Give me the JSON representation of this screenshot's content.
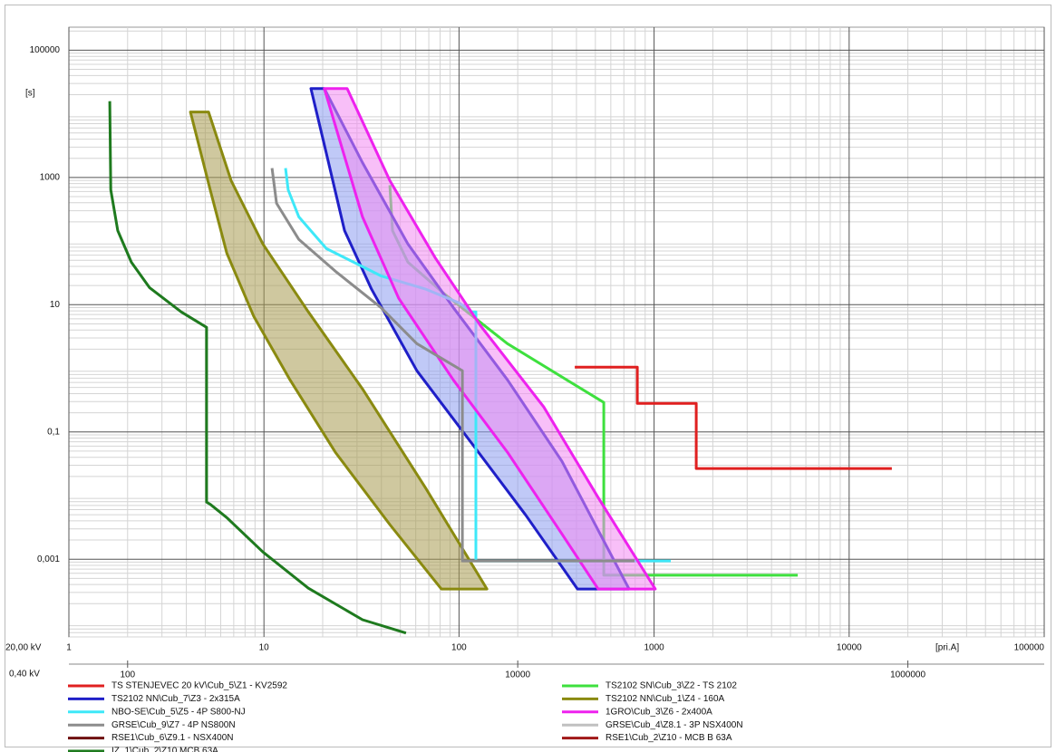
{
  "chart_data": {
    "type": "line",
    "x_label": "[pri.A]",
    "y_unit": "[s]",
    "x_axis_label": "20,00 kV",
    "x2_axis_label": "0,40 kV",
    "log_x": true,
    "log_y": true,
    "grid": true,
    "xlim": [
      1,
      100000
    ],
    "xticks": [
      1,
      10,
      100,
      1000,
      10000,
      100000
    ],
    "x2lim": [
      50,
      5000000
    ],
    "x2ticks": [
      100,
      10000,
      1000000
    ],
    "ylim": [
      6e-05,
      230000
    ],
    "yticks": [
      {
        "value": 0.001,
        "label": "0,001"
      },
      {
        "value": 0.1,
        "label": "0,1"
      },
      10,
      1000,
      100000
    ],
    "series": [
      {
        "name": "TS STENJEVEC 20 kV\\Cub_5\\Z1 - KV2592",
        "color": "#e02020",
        "x": [
          392,
          820,
          820,
          1644,
          1644,
          16560
        ],
        "values": [
          1.04,
          1.04,
          0.28,
          0.28,
          0.0266,
          0.0266
        ]
      },
      {
        "name": "TS2102 SN\\Cub_3\\Z2 - TS 2102",
        "color": "#3ee03e",
        "x": [
          44.2,
          45.6,
          54.7,
          84,
          177,
          552,
          552,
          5450
        ],
        "values": [
          755,
          146,
          46.6,
          14.8,
          2.44,
          0.291,
          0.00056,
          0.00056
        ]
      },
      {
        "name": "TS2102 NN\\Cub_7\\Z3 - 2x315A",
        "color": "#1f1fc8",
        "fill": "#8d9cf0",
        "x": [
          17.4,
          20.4,
          32,
          54.7,
          93.4,
          177,
          337,
          744,
          405,
          220,
          116,
          60.8,
          35.6,
          25.9,
          20.9
        ],
        "values": [
          25000,
          25000,
          1710,
          90,
          9.06,
          0.66,
          0.0346,
          0.00034,
          0.00034,
          0.0049,
          0.0667,
          0.915,
          17.5,
          146,
          2370
        ]
      },
      {
        "name": "TS2102 NN\\Cub_1\\Z4 - 160A",
        "color": "#8a8a10",
        "fill": "#a89a50",
        "x": [
          4.2,
          5.2,
          6.79,
          9.87,
          16.9,
          32,
          67.7,
          139,
          81.2,
          44.2,
          23.2,
          13.6,
          8.87,
          6.45,
          5.3
        ],
        "values": [
          10700,
          10700,
          889,
          90,
          7.7,
          0.475,
          0.0129,
          0.00034,
          0.00034,
          0.0035,
          0.048,
          0.66,
          6.53,
          64.7,
          640
        ]
      },
      {
        "name": "NBO-SE\\Cub_5\\Z5 - 4P S800-NJ",
        "color": "#3ee8f8",
        "x": [
          12.9,
          13.3,
          15.1,
          20.9,
          39.7,
          67.7,
          100,
          116,
          122,
          122,
          1217
        ],
        "values": [
          1400,
          640,
          240,
          76,
          28.5,
          17.5,
          10.7,
          7.7,
          7.7,
          0.00094,
          0.00094
        ]
      },
      {
        "name": "1GRO\\Cub_3\\Z6 - 2x400A",
        "color": "#ee22ee",
        "fill": "#f38af3",
        "x": [
          20.4,
          26.7,
          44.2,
          75.4,
          128.7,
          272,
          517,
          1014,
          517,
          337,
          177,
          93.4,
          49.1,
          32
        ],
        "values": [
          25000,
          25000,
          889,
          55,
          4.7,
          0.247,
          0.0093,
          0.00034,
          0.00034,
          0.0025,
          0.048,
          0.66,
          12.6,
          240
        ]
      },
      {
        "name": "GRSE\\Cub_9\\Z7 - 4P NS800N",
        "color": "#8c8c8c",
        "x": [
          11,
          11.6,
          15.1,
          23.2,
          39.7,
          60.8,
          104,
          104,
          794
        ],
        "values": [
          1400,
          392,
          106,
          33.6,
          9.06,
          2.44,
          0.915,
          0.00094,
          0.00094
        ]
      },
      {
        "name": "GRSE\\Cub_4\\Z8.1 - 3P NSX400N",
        "color": "#c0c0c0",
        "x": [],
        "values": []
      },
      {
        "name": "RSE1\\Cub_6\\Z9.1 - NSX400N",
        "color": "#6e1010",
        "x": [],
        "values": []
      },
      {
        "name": "RSE1\\Cub_2\\Z10 - MCB B 63A",
        "color": "#a01818",
        "x": [],
        "values": []
      },
      {
        "name": "IZ_1\\Cub_2\\Z10 MCB 63A",
        "color": "#1e7a1e",
        "x": [
          1.62,
          1.64,
          1.78,
          2.09,
          2.59,
          3.77,
          5.08,
          5.08,
          5.3,
          6.45,
          9.87,
          16.9,
          32,
          53.5
        ],
        "values": [
          15800,
          640,
          146,
          46.6,
          18.6,
          7.7,
          4.4,
          0.0079,
          0.0073,
          0.0045,
          0.0013,
          0.00035,
          0.000112,
          6.9e-05
        ]
      }
    ]
  }
}
